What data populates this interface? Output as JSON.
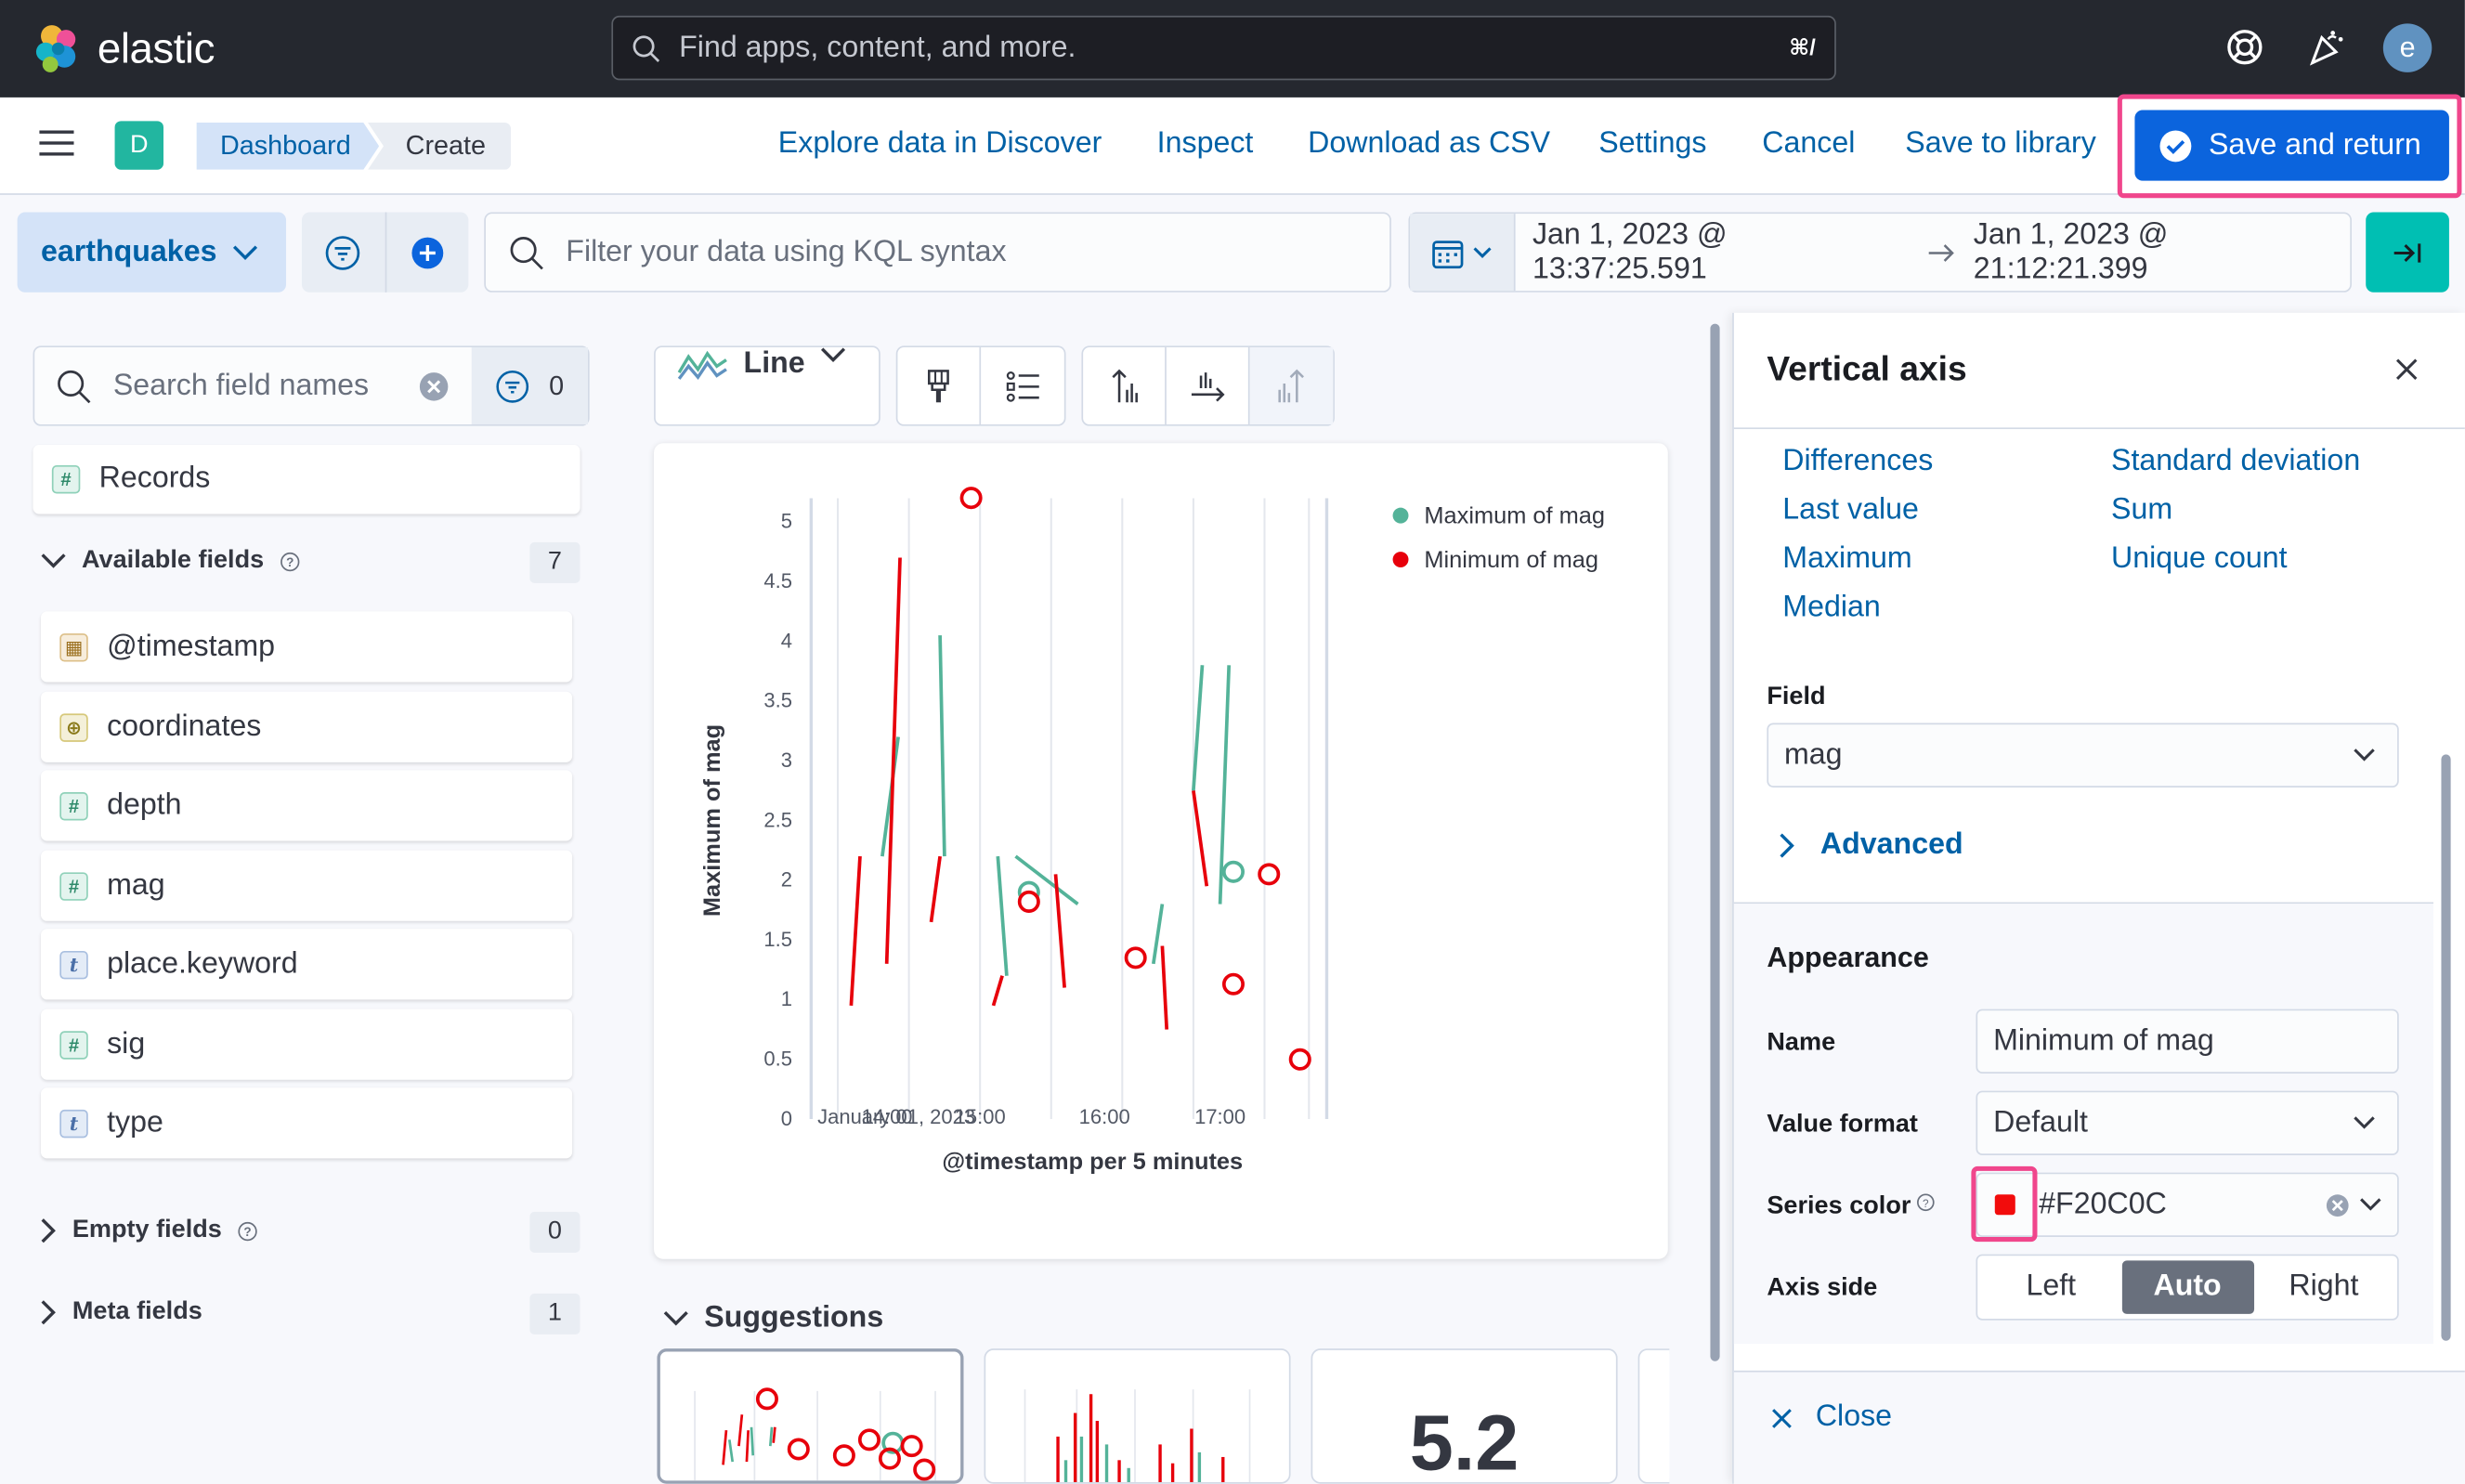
{
  "topbar": {
    "brand": "elastic",
    "search_placeholder": "Find apps, content, and more.",
    "search_shortcut": "⌘/",
    "user_initial": "e"
  },
  "nav": {
    "space_badge": "D",
    "breadcrumbs": [
      "Dashboard",
      "Create"
    ],
    "links": [
      "Explore data in Discover",
      "Inspect",
      "Download as CSV",
      "Settings",
      "Cancel",
      "Save to library"
    ],
    "save_button": "Save and return"
  },
  "query": {
    "data_view": "earthquakes",
    "kql_placeholder": "Filter your data using KQL syntax",
    "date_start": "Jan 1, 2023 @ 13:37:25.591",
    "date_end": "Jan 1, 2023 @ 21:12:21.399"
  },
  "fields": {
    "search_placeholder": "Search field names",
    "filter_count": "0",
    "records": "Records",
    "available_label": "Available fields",
    "available_count": "7",
    "items": [
      {
        "name": "@timestamp",
        "type": "date",
        "icon": "calendar-icon"
      },
      {
        "name": "coordinates",
        "type": "geo",
        "icon": "globe-icon"
      },
      {
        "name": "depth",
        "type": "number",
        "icon": "#"
      },
      {
        "name": "mag",
        "type": "number",
        "icon": "#"
      },
      {
        "name": "place.keyword",
        "type": "string",
        "icon": "t"
      },
      {
        "name": "sig",
        "type": "number",
        "icon": "#"
      },
      {
        "name": "type",
        "type": "string",
        "icon": "t"
      }
    ],
    "empty_label": "Empty fields",
    "empty_count": "0",
    "meta_label": "Meta fields",
    "meta_count": "1"
  },
  "workspace": {
    "chart_type": "Line",
    "suggestions_label": "Suggestions",
    "suggestion_metric": "5.2"
  },
  "chart_data": {
    "type": "line",
    "ylabel": "Maximum of mag",
    "xlabel": "@timestamp per 5 minutes",
    "ylim": [
      0,
      5
    ],
    "y_ticks": [
      "0",
      "0.5",
      "1",
      "1.5",
      "2",
      "2.5",
      "3",
      "3.5",
      "4",
      "4.5",
      "5"
    ],
    "x_ticks": [
      "January 01, 2023",
      "14:00",
      "15:00",
      "16:00",
      "17:00"
    ],
    "legend_position": "top-right",
    "colors": {
      "max": "#54b399",
      "min": "#e7000b"
    },
    "series": [
      {
        "name": "Maximum of mag",
        "points": [
          [
            0.6,
            2.2
          ],
          [
            0.78,
            3.2
          ],
          [
            0.2,
            4.7
          ],
          [
            1.5,
            4.05
          ],
          [
            2.1,
            2.2
          ],
          [
            2.8,
            1.8
          ],
          [
            3.4,
            1.9
          ],
          [
            4.0,
            2.15
          ],
          [
            4.4,
            1.8
          ],
          [
            4.5,
            3.8
          ],
          [
            5.0,
            2.07
          ]
        ]
      },
      {
        "name": "Minimum of mag",
        "points": [
          [
            0.3,
            0.95
          ],
          [
            0.6,
            2.2
          ],
          [
            1.3,
            1.3
          ],
          [
            1.7,
            4.7
          ],
          [
            2.0,
            2.1
          ],
          [
            2.2,
            1.2
          ],
          [
            2.9,
            1.82
          ],
          [
            3.2,
            1.35
          ],
          [
            3.6,
            0.75
          ],
          [
            4.3,
            2.75
          ],
          [
            5.0,
            1.13
          ],
          [
            5.3,
            2.05
          ],
          [
            5.6,
            0.5
          ],
          [
            5.2,
            5.2
          ]
        ]
      }
    ]
  },
  "flyout": {
    "title": "Vertical axis",
    "functions_col1": [
      "Differences",
      "Last value",
      "Maximum",
      "Median"
    ],
    "functions_col2": [
      "Standard deviation",
      "Sum",
      "Unique count"
    ],
    "field_label": "Field",
    "field_value": "mag",
    "advanced": "Advanced",
    "appearance": "Appearance",
    "name_label": "Name",
    "name_value": "Minimum of mag",
    "format_label": "Value format",
    "format_value": "Default",
    "color_label": "Series color",
    "color_value": "#F20C0C",
    "axis_label": "Axis side",
    "axis_options": [
      "Left",
      "Auto",
      "Right"
    ],
    "axis_selected": "Auto",
    "close": "Close"
  }
}
